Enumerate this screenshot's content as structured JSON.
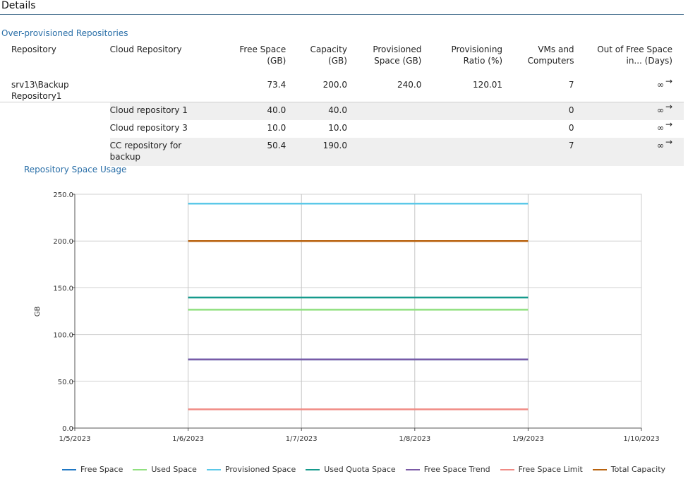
{
  "details": {
    "title": "Details"
  },
  "over_provisioned": {
    "title": "Over-provisioned Repositories",
    "columns": {
      "repository": "Repository",
      "cloud_repository": "Cloud Repository",
      "free_space_1": "Free Space",
      "free_space_2": "(GB)",
      "capacity_1": "Capacity",
      "capacity_2": "(GB)",
      "provisioned_1": "Provisioned",
      "provisioned_2": "Space (GB)",
      "ratio_1": "Provisioning",
      "ratio_2": "Ratio (%)",
      "vms_1": "VMs and",
      "vms_2": "Computers",
      "oos_1": "Out of Free Space",
      "oos_2": "in... (Days)"
    },
    "main_row": {
      "repository": "srv13\\Backup Repository1",
      "free_space": "73.4",
      "capacity": "200.0",
      "provisioned": "240.0",
      "ratio": "120.01",
      "vms": "7",
      "oos": "∞",
      "oos_arrow": "→"
    },
    "sub_rows": [
      {
        "cloud_repository": "Cloud repository 1",
        "free_space": "40.0",
        "capacity": "40.0",
        "vms": "0",
        "oos": "∞",
        "oos_arrow": "→"
      },
      {
        "cloud_repository": "Cloud repository 3",
        "free_space": "10.0",
        "capacity": "10.0",
        "vms": "0",
        "oos": "∞",
        "oos_arrow": "→"
      },
      {
        "cloud_repository": "CC repository for backup",
        "free_space": "50.4",
        "capacity": "190.0",
        "vms": "7",
        "oos": "∞",
        "oos_arrow": "→"
      }
    ]
  },
  "usage": {
    "title": "Repository Space Usage"
  },
  "chart_data": {
    "type": "line",
    "title": "",
    "xlabel": "",
    "ylabel": "GB",
    "ylim": [
      0,
      250
    ],
    "yticks": [
      "0.0",
      "50.0",
      "100.0",
      "150.0",
      "200.0",
      "250.0"
    ],
    "x_ticks": [
      "1/5/2023",
      "1/6/2023",
      "1/7/2023",
      "1/8/2023",
      "1/9/2023",
      "1/10/2023"
    ],
    "x": [
      "1/6/2023",
      "1/7/2023",
      "1/8/2023",
      "1/9/2023"
    ],
    "grid": true,
    "legend_position": "bottom",
    "series": [
      {
        "name": "Free Space",
        "color": "#1f77c4",
        "values": [
          73.4,
          73.4,
          73.4,
          73.4
        ]
      },
      {
        "name": "Used Space",
        "color": "#90e07f",
        "values": [
          126.6,
          126.6,
          126.6,
          126.6
        ]
      },
      {
        "name": "Provisioned Space",
        "color": "#5bc8e8",
        "values": [
          240,
          240,
          240,
          240
        ]
      },
      {
        "name": "Used Quota Space",
        "color": "#159a8c",
        "values": [
          139.6,
          139.6,
          139.6,
          139.6
        ]
      },
      {
        "name": "Free Space Trend",
        "color": "#7b5aa6",
        "values": [
          73.4,
          73.4,
          73.4,
          73.4
        ]
      },
      {
        "name": "Free Space Limit",
        "color": "#f08a84",
        "values": [
          20,
          20,
          20,
          20
        ]
      },
      {
        "name": "Total Capacity",
        "color": "#b8620e",
        "values": [
          200,
          200,
          200,
          200
        ]
      }
    ]
  }
}
